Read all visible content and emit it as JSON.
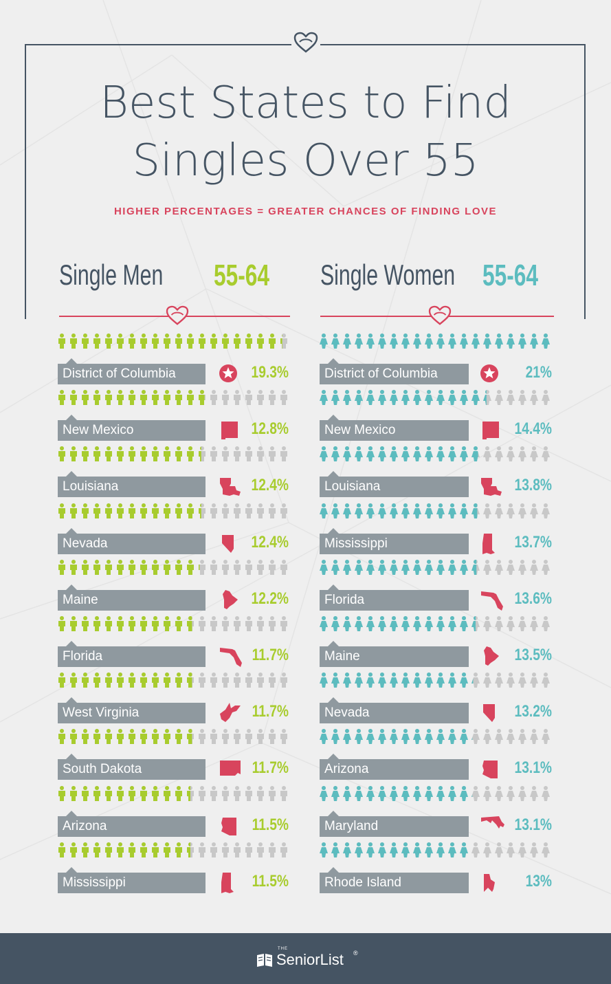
{
  "header": {
    "title_line1": "Best States to Find",
    "title_line2": "Singles Over 55",
    "subtitle": "HIGHER PERCENTAGES = GREATER CHANCES OF FINDING LOVE"
  },
  "columns": {
    "men": {
      "label": "Single Men",
      "age": "55-64",
      "color": "#a8cc2e"
    },
    "women": {
      "label": "Single Women",
      "age": "55-64",
      "color": "#5cbcbf"
    }
  },
  "colors": {
    "title": "#455463",
    "accent": "#d8445d",
    "label_bar": "#8f999f",
    "icon_empty": "#c8c8c8",
    "footer": "#455463"
  },
  "footer": {
    "logo_the": "THE",
    "logo_text": "SeniorList",
    "logo_mark": "®"
  },
  "chart_data": [
    {
      "type": "bar",
      "title": "Single Men 55-64",
      "categories": [
        "District of Columbia",
        "New Mexico",
        "Louisiana",
        "Nevada",
        "Maine",
        "Florida",
        "West Virginia",
        "South Dakota",
        "Arizona",
        "Mississippi"
      ],
      "values": [
        19.3,
        12.8,
        12.4,
        12.4,
        12.2,
        11.7,
        11.7,
        11.7,
        11.5,
        11.5
      ],
      "labels": [
        "19.3%",
        "12.8%",
        "12.4%",
        "12.4%",
        "12.2%",
        "11.7%",
        "11.7%",
        "11.7%",
        "11.5%",
        "11.5%"
      ],
      "icons": [
        "dc-star-icon",
        "new-mexico-icon",
        "louisiana-icon",
        "nevada-icon",
        "maine-icon",
        "florida-icon",
        "west-virginia-icon",
        "south-dakota-icon",
        "arizona-icon",
        "mississippi-icon"
      ]
    },
    {
      "type": "bar",
      "title": "Single Women 55-64",
      "categories": [
        "District of Columbia",
        "New Mexico",
        "Louisiana",
        "Mississippi",
        "Florida",
        "Maine",
        "Nevada",
        "Arizona",
        "Maryland",
        "Rhode Island"
      ],
      "values": [
        21,
        14.4,
        13.8,
        13.7,
        13.6,
        13.5,
        13.2,
        13.1,
        13.1,
        13
      ],
      "labels": [
        "21%",
        "14.4%",
        "13.8%",
        "13.7%",
        "13.6%",
        "13.5%",
        "13.2%",
        "13.1%",
        "13.1%",
        "13%"
      ],
      "icons": [
        "dc-star-icon",
        "new-mexico-icon",
        "louisiana-icon",
        "mississippi-icon",
        "florida-icon",
        "maine-icon",
        "nevada-icon",
        "arizona-icon",
        "maryland-icon",
        "rhode-island-icon"
      ]
    }
  ]
}
